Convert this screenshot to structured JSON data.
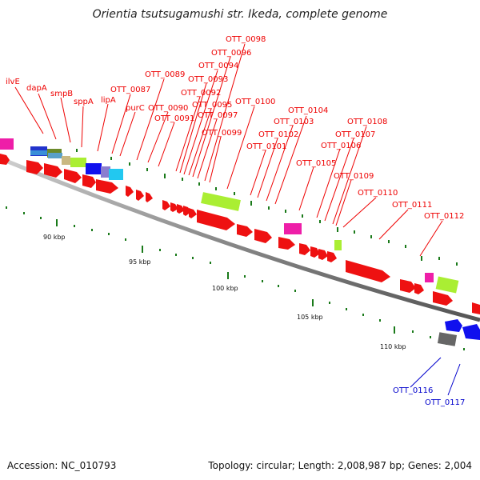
{
  "title": "Orientia tsutsugamushi str. Ikeda, complete genome",
  "footer": {
    "accession": "Accession: NC_010793",
    "stats": "Topology: circular; Length: 2,008,987 bp; Genes: 2,004"
  },
  "colors": {
    "backbone": "#888888",
    "cds": "#ee1111",
    "tick": "#1a7a1a",
    "label_red": "#ee0000",
    "label_blue": "#0000cc"
  },
  "scale": {
    "unit": "kbp",
    "labels": [
      "90 kbp",
      "95 kbp",
      "100 kbp",
      "105 kbp",
      "110 kbp"
    ]
  },
  "gene_labels": [
    {
      "name": "ilvE",
      "color": "red"
    },
    {
      "name": "dapA",
      "color": "red"
    },
    {
      "name": "smpB",
      "color": "red"
    },
    {
      "name": "sppA",
      "color": "red"
    },
    {
      "name": "lipA",
      "color": "red"
    },
    {
      "name": "OTT_0087",
      "color": "red"
    },
    {
      "name": "purC",
      "color": "red"
    },
    {
      "name": "OTT_0089",
      "color": "red"
    },
    {
      "name": "OTT_0090",
      "color": "red"
    },
    {
      "name": "OTT_0091",
      "color": "red"
    },
    {
      "name": "OTT_0092",
      "color": "red"
    },
    {
      "name": "OTT_0093",
      "color": "red"
    },
    {
      "name": "OTT_0094",
      "color": "red"
    },
    {
      "name": "OTT_0095",
      "color": "red"
    },
    {
      "name": "OTT_0096",
      "color": "red"
    },
    {
      "name": "OTT_0097",
      "color": "red"
    },
    {
      "name": "OTT_0098",
      "color": "red"
    },
    {
      "name": "OTT_0099",
      "color": "red"
    },
    {
      "name": "OTT_0100",
      "color": "red"
    },
    {
      "name": "OTT_0101",
      "color": "red"
    },
    {
      "name": "OTT_0102",
      "color": "red"
    },
    {
      "name": "OTT_0103",
      "color": "red"
    },
    {
      "name": "OTT_0104",
      "color": "red"
    },
    {
      "name": "OTT_0105",
      "color": "red"
    },
    {
      "name": "OTT_0106",
      "color": "red"
    },
    {
      "name": "OTT_0107",
      "color": "red"
    },
    {
      "name": "OTT_0108",
      "color": "red"
    },
    {
      "name": "OTT_0109",
      "color": "red"
    },
    {
      "name": "OTT_0110",
      "color": "red"
    },
    {
      "name": "OTT_0111",
      "color": "red"
    },
    {
      "name": "OTT_0112",
      "color": "red"
    },
    {
      "name": "OTT_0116",
      "color": "blue"
    },
    {
      "name": "OTT_0117",
      "color": "blue"
    }
  ]
}
